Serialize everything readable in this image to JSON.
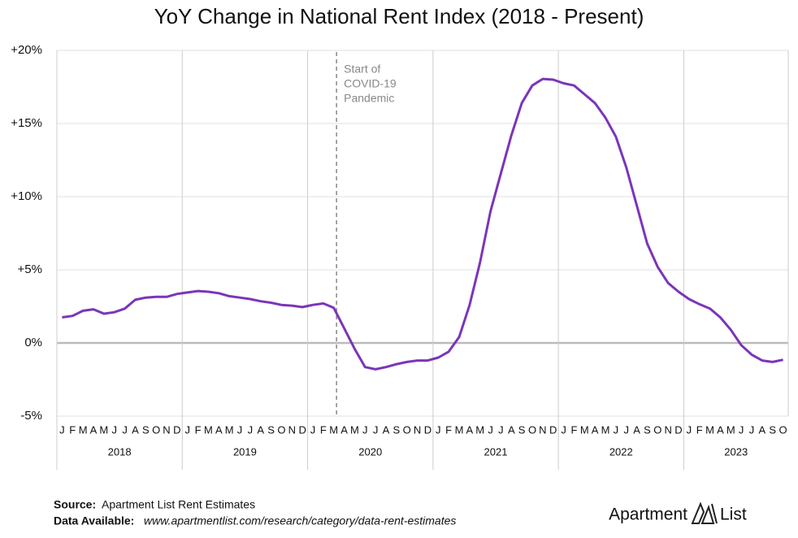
{
  "chart_data": {
    "type": "line",
    "title": "YoY Change in National Rent Index (2018 - Present)",
    "categories": [
      "J",
      "F",
      "M",
      "A",
      "M",
      "J",
      "J",
      "A",
      "S",
      "O",
      "N",
      "D",
      "J",
      "F",
      "M",
      "A",
      "M",
      "J",
      "J",
      "A",
      "S",
      "O",
      "N",
      "D",
      "J",
      "F",
      "M",
      "A",
      "M",
      "J",
      "J",
      "A",
      "S",
      "O",
      "N",
      "D",
      "J",
      "F",
      "M",
      "A",
      "M",
      "J",
      "J",
      "A",
      "S",
      "O",
      "N",
      "D",
      "J",
      "F",
      "M",
      "A",
      "M",
      "J",
      "J",
      "A",
      "S",
      "O",
      "N",
      "D",
      "J",
      "F",
      "M",
      "A",
      "M",
      "J",
      "J",
      "A",
      "S",
      "O"
    ],
    "years": [
      "2018",
      "2019",
      "2020",
      "2021",
      "2022",
      "2023"
    ],
    "values": [
      1.75,
      1.85,
      2.2,
      2.3,
      2.0,
      2.1,
      2.35,
      2.95,
      3.1,
      3.15,
      3.15,
      3.35,
      3.45,
      3.55,
      3.5,
      3.4,
      3.2,
      3.1,
      3.0,
      2.85,
      2.75,
      2.6,
      2.55,
      2.45,
      2.6,
      2.7,
      2.4,
      1.0,
      -0.4,
      -1.65,
      -1.8,
      -1.65,
      -1.45,
      -1.3,
      -1.2,
      -1.2,
      -1.0,
      -0.6,
      0.4,
      2.6,
      5.5,
      9.0,
      11.6,
      14.2,
      16.4,
      17.6,
      18.05,
      18.0,
      17.75,
      17.6,
      17.0,
      16.4,
      15.4,
      14.1,
      12.0,
      9.4,
      6.8,
      5.2,
      4.1,
      3.5,
      3.0,
      2.65,
      2.35,
      1.75,
      0.9,
      -0.15,
      -0.8,
      -1.2,
      -1.3,
      -1.15
    ],
    "color": "#7b35b8",
    "ylim": [
      -5,
      20
    ],
    "yticks": [
      {
        "value": -5,
        "label": "-5%"
      },
      {
        "value": 0,
        "label": "0%"
      },
      {
        "value": 5,
        "label": "+5%"
      },
      {
        "value": 10,
        "label": "+10%"
      },
      {
        "value": 15,
        "label": "+15%"
      },
      {
        "value": 20,
        "label": "+20%"
      }
    ],
    "grid": true,
    "annotation": [
      "Start of",
      "COVID-19",
      "Pandemic"
    ]
  },
  "footer": {
    "source_label": "Source:",
    "source": "Apartment List Rent Estimates",
    "data_label": "Data Available:",
    "data": "www.apartmentlist.com/research/category/data-rent-estimates"
  },
  "logo": {
    "left": "Apartment",
    "right": "List"
  }
}
